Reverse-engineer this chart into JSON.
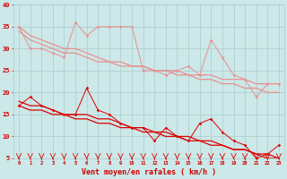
{
  "x": [
    0,
    1,
    2,
    3,
    4,
    5,
    6,
    7,
    8,
    9,
    10,
    11,
    12,
    13,
    14,
    15,
    16,
    17,
    18,
    19,
    20,
    21,
    22,
    23
  ],
  "line1_pink_zigzag": [
    35,
    30,
    30,
    29,
    28,
    36,
    33,
    35,
    35,
    35,
    35,
    25,
    25,
    24,
    25,
    26,
    24,
    32,
    28,
    24,
    23,
    19,
    22,
    22
  ],
  "line2_pink_trend1": [
    34,
    32,
    31,
    30,
    29,
    29,
    28,
    27,
    27,
    26,
    26,
    26,
    25,
    25,
    25,
    24,
    24,
    24,
    23,
    23,
    23,
    22,
    22,
    22
  ],
  "line3_pink_trend2": [
    35,
    33,
    32,
    31,
    30,
    30,
    29,
    28,
    27,
    27,
    26,
    26,
    25,
    25,
    24,
    24,
    23,
    23,
    22,
    22,
    21,
    21,
    20,
    20
  ],
  "line4_red_zigzag": [
    17,
    19,
    17,
    16,
    15,
    15,
    21,
    16,
    15,
    13,
    12,
    12,
    9,
    12,
    10,
    9,
    13,
    14,
    11,
    9,
    8,
    5,
    6,
    8
  ],
  "line5_red_trend1": [
    17,
    16,
    16,
    15,
    15,
    14,
    14,
    13,
    13,
    12,
    12,
    11,
    11,
    10,
    10,
    9,
    9,
    8,
    8,
    7,
    7,
    6,
    6,
    5
  ],
  "line6_red_trend2": [
    18,
    17,
    17,
    16,
    15,
    15,
    15,
    14,
    14,
    13,
    12,
    12,
    11,
    11,
    10,
    10,
    9,
    9,
    8,
    7,
    7,
    6,
    5,
    5
  ],
  "background_color": "#cce8e8",
  "grid_color": "#aacccc",
  "pink_color": "#e89090",
  "red_color": "#dd0000",
  "xlabel": "Vent moyen/en rafales ( km/h )",
  "xlabel_color": "#cc0000",
  "tick_color": "#cc0000",
  "ylim": [
    5,
    40
  ],
  "xlim": [
    -0.5,
    23.5
  ],
  "yticks": [
    5,
    10,
    15,
    20,
    25,
    30,
    35,
    40
  ]
}
